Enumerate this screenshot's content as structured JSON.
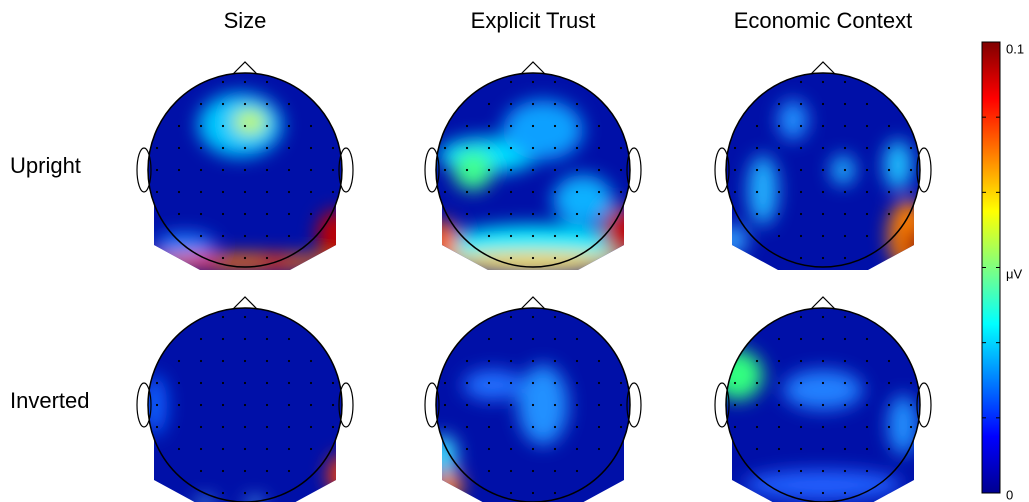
{
  "chart_data": {
    "type": "topoplot",
    "columns": [
      "Size",
      "Explicit Trust",
      "Economic Context"
    ],
    "rows": [
      "Upright",
      "Inverted"
    ],
    "colorbar": {
      "label": "μV",
      "lim": [
        0,
        0.1
      ],
      "ticks": [
        0,
        0.1
      ]
    }
  }
}
